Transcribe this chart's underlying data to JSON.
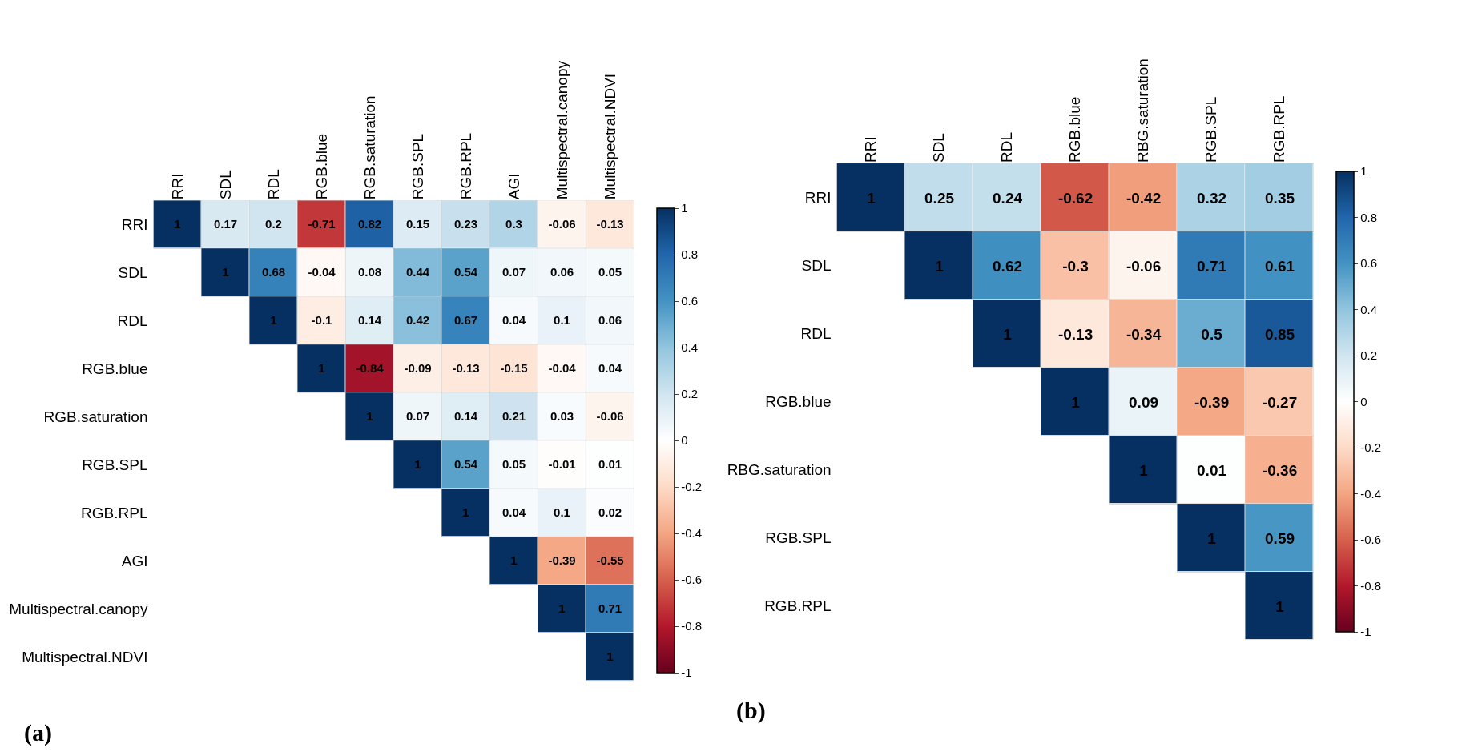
{
  "chart_data": [
    {
      "type": "heatmap",
      "title": "(a)",
      "data_labels": true,
      "categories": [
        "RRI",
        "SDL",
        "RDL",
        "RGB.blue",
        "RGB.saturation",
        "RGB.SPL",
        "RGB.RPL",
        "AGI",
        "Multispectral.canopy",
        "Multispectral.NDVI"
      ],
      "y_categories": [
        "RRI",
        "SDL",
        "RDL",
        "RGB.blue",
        "RGB.saturation",
        "RGB.SPL",
        "RGB.RPL",
        "AGI",
        "Multispectral.canopy",
        "Multispectral.NDVI"
      ],
      "cells": [
        [
          1,
          0.17,
          0.2,
          -0.71,
          0.82,
          0.15,
          0.23,
          0.3,
          -0.06,
          -0.13
        ],
        [
          null,
          1,
          0.68,
          -0.04,
          0.08,
          0.44,
          0.54,
          0.07,
          0.06,
          0.05
        ],
        [
          null,
          null,
          1,
          -0.1,
          0.14,
          0.42,
          0.67,
          0.04,
          0.1,
          0.06
        ],
        [
          null,
          null,
          null,
          1,
          -0.84,
          -0.09,
          -0.13,
          -0.15,
          -0.04,
          0.04
        ],
        [
          null,
          null,
          null,
          null,
          1,
          0.07,
          0.14,
          0.21,
          0.03,
          -0.06
        ],
        [
          null,
          null,
          null,
          null,
          null,
          1,
          0.54,
          0.05,
          -0.01,
          0.01
        ],
        [
          null,
          null,
          null,
          null,
          null,
          null,
          1,
          0.04,
          0.1,
          0.02
        ],
        [
          null,
          null,
          null,
          null,
          null,
          null,
          null,
          1,
          -0.39,
          -0.55
        ],
        [
          null,
          null,
          null,
          null,
          null,
          null,
          null,
          null,
          1,
          0.71
        ],
        [
          null,
          null,
          null,
          null,
          null,
          null,
          null,
          null,
          null,
          1
        ]
      ],
      "clim": [
        -1,
        1
      ],
      "cticks": [
        -1,
        -0.8,
        -0.6,
        -0.4,
        -0.2,
        0,
        0.2,
        0.4,
        0.6,
        0.8,
        1
      ]
    },
    {
      "type": "heatmap",
      "title": "(b)",
      "data_labels": true,
      "categories": [
        "RRI",
        "SDL",
        "RDL",
        "RGB.blue",
        "RBG.saturation",
        "RGB.SPL",
        "RGB.RPL"
      ],
      "y_categories": [
        "RRI",
        "SDL",
        "RDL",
        "RGB.blue",
        "RBG.saturation",
        "RGB.SPL",
        "RGB.RPL"
      ],
      "cells": [
        [
          1,
          0.25,
          0.24,
          -0.62,
          -0.42,
          0.32,
          0.35
        ],
        [
          null,
          1,
          0.62,
          -0.3,
          -0.06,
          0.71,
          0.61
        ],
        [
          null,
          null,
          1,
          -0.13,
          -0.34,
          0.5,
          0.85
        ],
        [
          null,
          null,
          null,
          1,
          0.09,
          -0.39,
          -0.27
        ],
        [
          null,
          null,
          null,
          null,
          1,
          0.01,
          -0.36
        ],
        [
          null,
          null,
          null,
          null,
          null,
          1,
          0.59
        ],
        [
          null,
          null,
          null,
          null,
          null,
          null,
          1
        ]
      ],
      "clim": [
        -1,
        1
      ],
      "cticks": [
        -1,
        -0.8,
        -0.6,
        -0.4,
        -0.2,
        0,
        0.2,
        0.4,
        0.6,
        0.8,
        1
      ]
    }
  ]
}
